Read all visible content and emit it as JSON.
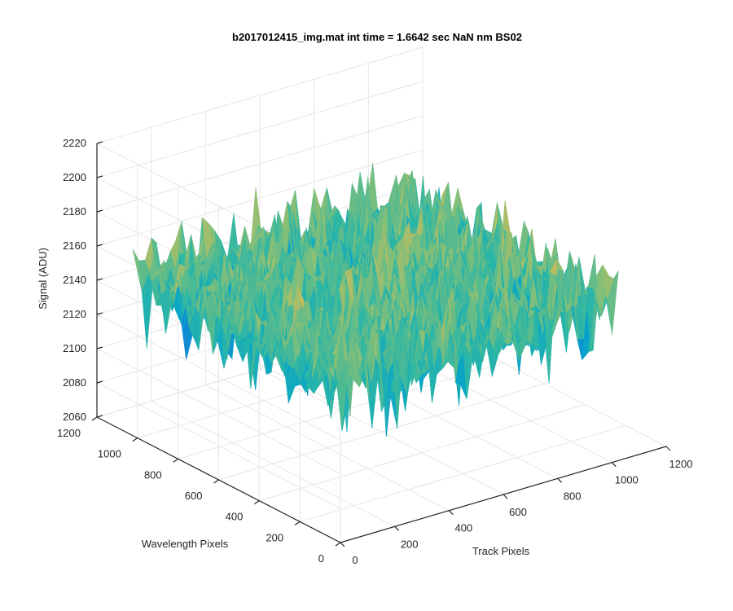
{
  "chart_data": {
    "type": "surface",
    "title": "b2017012415_img.mat int time = 1.6642 sec  NaN nm BS02",
    "xlabel": "Track Pixels",
    "ylabel": "Wavelength Pixels",
    "zlabel": "Signal (ADU)",
    "xlim": [
      0,
      1200
    ],
    "ylim": [
      0,
      1200
    ],
    "zlim": [
      2060,
      2220
    ],
    "xticks": [
      0,
      200,
      400,
      600,
      800,
      1000,
      1200
    ],
    "yticks": [
      0,
      200,
      400,
      600,
      800,
      1000,
      1200
    ],
    "zticks": [
      2060,
      2080,
      2100,
      2120,
      2140,
      2160,
      2180,
      2200,
      2220
    ],
    "surface_extent": {
      "x": [
        0,
        1024
      ],
      "y": [
        0,
        1024
      ]
    },
    "surface_mean": 2150,
    "surface_noise_range": [
      2068,
      2212
    ],
    "colormap": "parula",
    "colormap_stops": [
      "#352a87",
      "#0f5cdd",
      "#1481d6",
      "#06a4ca",
      "#2eb7a4",
      "#87bf77",
      "#d1bb59",
      "#fec832",
      "#f9fb0e"
    ],
    "grid": true,
    "view": {
      "azimuth": -37.5,
      "elevation": 30
    }
  }
}
